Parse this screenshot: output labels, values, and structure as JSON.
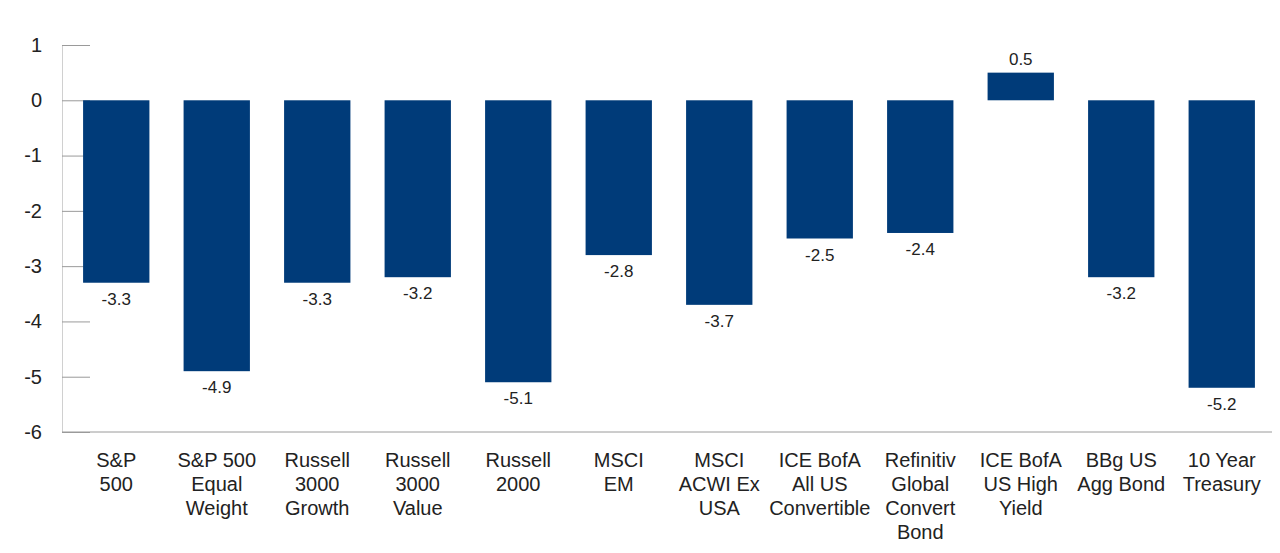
{
  "chart_data": {
    "type": "bar",
    "categories": [
      "S&P\n500",
      "S&P 500\nEqual\nWeight",
      "Russell\n3000\nGrowth",
      "Russell\n3000\nValue",
      "Russell\n2000",
      "MSCI\nEM",
      "MSCI\nACWI Ex\nUSA",
      "ICE BofA\nAll US\nConvertible",
      "Refinitiv\nGlobal\nConvert\nBond",
      "ICE BofA\nUS High\nYield",
      "BBg US\nAgg Bond",
      "10 Year\nTreasury"
    ],
    "values": [
      -3.3,
      -4.9,
      -3.3,
      -3.2,
      -5.1,
      -2.8,
      -3.7,
      -2.5,
      -2.4,
      0.5,
      -3.2,
      -5.2
    ],
    "color": "#003b79",
    "ylim": [
      -6,
      1
    ],
    "yticks": [
      -6,
      -5,
      -4,
      -3,
      -2,
      -1,
      0,
      1
    ],
    "grid": false,
    "data_labels": true
  }
}
